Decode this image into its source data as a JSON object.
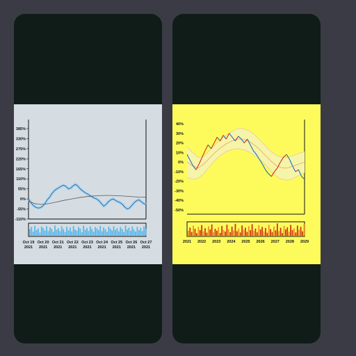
{
  "chart_data": [
    {
      "type": "line",
      "title": "",
      "xlabel": "",
      "ylabel": "",
      "background": "#d5dde3",
      "y_ticks": [
        "-110%",
        "-55%",
        "0%",
        "55%",
        "110%",
        "165%",
        "220%",
        "275%",
        "330%",
        "385%"
      ],
      "ylim": [
        -110,
        385
      ],
      "x_ticks": [
        {
          "line1": "Oct 19",
          "line2": "2021"
        },
        {
          "line1": "Oct 20",
          "line2": "2021"
        },
        {
          "line1": "Oct 21",
          "line2": "2021"
        },
        {
          "line1": "Oct 22",
          "line2": "2021"
        },
        {
          "line1": "Oct 23",
          "line2": "2021"
        },
        {
          "line1": "Oct 24",
          "line2": "2021"
        },
        {
          "line1": "Oct 25",
          "line2": "2021"
        },
        {
          "line1": "Oct 26",
          "line2": "2021"
        },
        {
          "line1": "Oct 27",
          "line2": "2021"
        }
      ],
      "series": [
        {
          "values": [
            0,
            -20,
            -35,
            -45,
            -50,
            -48,
            -40,
            -25,
            -5,
            10,
            30,
            45,
            55,
            62,
            70,
            75,
            68,
            55,
            60,
            72,
            80,
            70,
            55,
            45,
            35,
            28,
            20,
            12,
            5,
            0,
            -10,
            -25,
            -40,
            -30,
            -15,
            -5,
            0,
            -8,
            -15,
            -20,
            -30,
            -45,
            -55,
            -50,
            -35,
            -20,
            -10,
            -5,
            -15,
            -25,
            -30
          ]
        },
        {
          "values": [
            -12,
            -25,
            -30,
            -28,
            -22,
            -15,
            -8,
            -2,
            4,
            9,
            13,
            16,
            18,
            19,
            19,
            18,
            16,
            14,
            12,
            10,
            9
          ]
        }
      ],
      "volume_max": 100,
      "volume": [
        62,
        85,
        40,
        95,
        55,
        70,
        30,
        88,
        74,
        50,
        92,
        45,
        80,
        66,
        38,
        97,
        58,
        72,
        44,
        90,
        63,
        35,
        86,
        52,
        78,
        41,
        93,
        60,
        48,
        84,
        69,
        33,
        96,
        57,
        75,
        46,
        89,
        64,
        39,
        82,
        71,
        54,
        94,
        43,
        79,
        61,
        37,
        87,
        68,
        50,
        91,
        56,
        73,
        42,
        83,
        65,
        36,
        98,
        59,
        77,
        47,
        88,
        62,
        40,
        85,
        53,
        76,
        45,
        92,
        67
      ]
    },
    {
      "type": "line",
      "title": "",
      "xlabel": "",
      "ylabel": "",
      "background": "#fdfb5c",
      "y_ticks": [
        "-50%",
        "-40%",
        "-30%",
        "-20%",
        "-10%",
        "0%",
        "10%",
        "20%",
        "30%",
        "40%"
      ],
      "ylim": [
        -50,
        40
      ],
      "x_ticks": [
        "2021",
        "2022",
        "2023",
        "2024",
        "2025",
        "2026",
        "2027",
        "2028",
        "2029"
      ],
      "series": [
        {
          "values": [
            8,
            2,
            -4,
            -8,
            -2,
            5,
            12,
            18,
            14,
            20,
            26,
            22,
            28,
            24,
            30,
            26,
            22,
            27,
            24,
            20,
            24,
            18,
            12,
            8,
            3,
            -2,
            -8,
            -12,
            -15,
            -10,
            -6,
            0,
            5,
            8,
            3,
            -4,
            -10,
            -8,
            -15,
            -18
          ]
        },
        {
          "values": [
            0,
            -4,
            -6,
            -2,
            4,
            10,
            15,
            19,
            22,
            24,
            24,
            22,
            18,
            13,
            7,
            1,
            -4,
            -6,
            -6,
            -4,
            -2,
            0
          ]
        }
      ],
      "band_upper": [
        16,
        10,
        5,
        6,
        12,
        18,
        24,
        28,
        32,
        35,
        35,
        33,
        29,
        23,
        17,
        11,
        7,
        5,
        5,
        7,
        9,
        11
      ],
      "band_lower": [
        -16,
        -18,
        -17,
        -12,
        -5,
        2,
        7,
        11,
        13,
        14,
        13,
        11,
        7,
        3,
        -3,
        -9,
        -15,
        -18,
        -19,
        -17,
        -14,
        -11
      ],
      "volume_max": 100,
      "volume": [
        40,
        65,
        30,
        80,
        55,
        20,
        70,
        45,
        85,
        35,
        60,
        25,
        75,
        50,
        90,
        30,
        55,
        40,
        68,
        22,
        78,
        46,
        33,
        88,
        52,
        28,
        72,
        41,
        95,
        36,
        58,
        26,
        82,
        48,
        64,
        31,
        76,
        44,
        92,
        38,
        57,
        27,
        84,
        49,
        70,
        34,
        61,
        24,
        87,
        53,
        29,
        74,
        43,
        98,
        37,
        63,
        21,
        79,
        50,
        67,
        32,
        86,
        45,
        59,
        26,
        81,
        47,
        71,
        35,
        93
      ]
    }
  ]
}
